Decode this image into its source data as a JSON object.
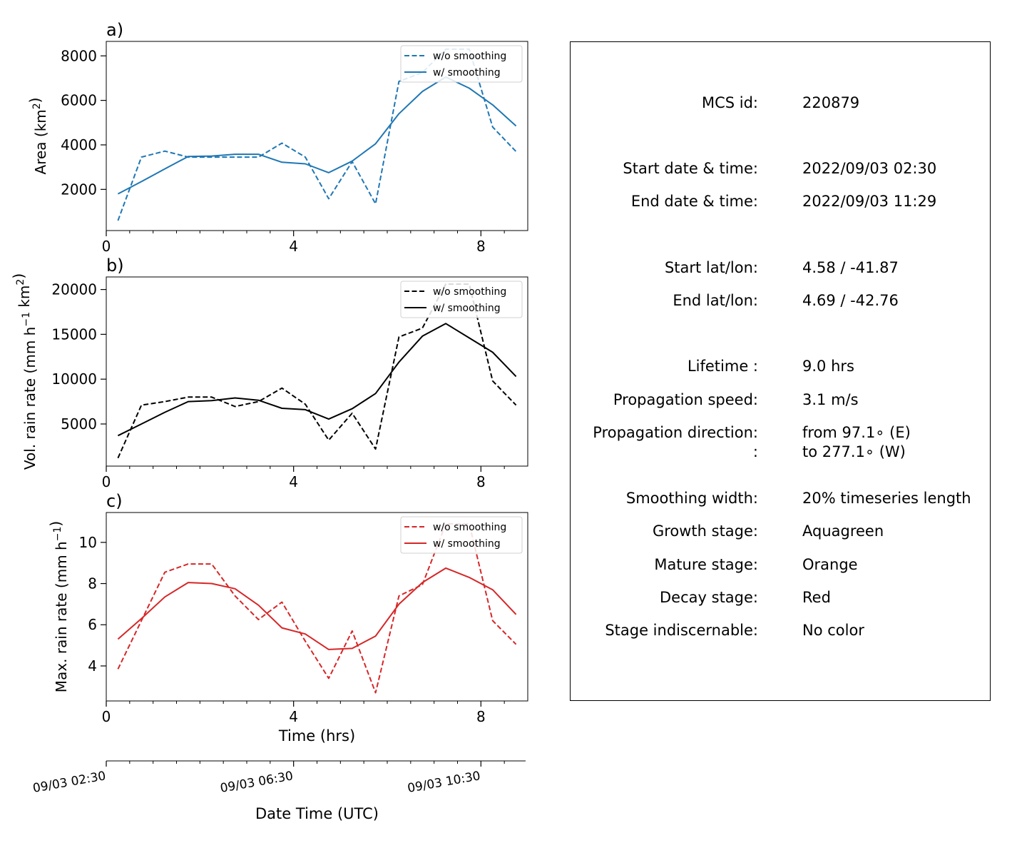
{
  "time_axis": {
    "label": "Time (hrs)",
    "ticks": [
      0,
      4,
      8
    ],
    "minor_ticks": [
      0.5,
      1,
      1.5,
      2,
      2.5,
      3,
      3.5,
      4.5,
      5,
      5.5,
      6,
      6.5,
      7,
      7.5,
      8.5
    ],
    "range": [
      0,
      9
    ]
  },
  "date_axis": {
    "label": "Date Time (UTC)",
    "tick_labels": [
      "09/03 02:30",
      "09/03 06:30",
      "09/03 10:30"
    ],
    "tick_hours": [
      0,
      4,
      8
    ]
  },
  "chart_data": [
    {
      "type": "line",
      "panel": "a)",
      "ylabel": "Area  (km²)",
      "ylabel_main": "Area  (km",
      "ylabel_sup": "2",
      "ylabel_tail": ")",
      "color": "#1f77b4",
      "yticks": [
        2000,
        4000,
        6000,
        8000
      ],
      "ylim": [
        150,
        8650
      ],
      "x": [
        0.25,
        0.75,
        1.25,
        1.75,
        2.25,
        2.75,
        3.25,
        3.75,
        4.25,
        4.75,
        5.25,
        5.75,
        6.25,
        6.75,
        7.25,
        7.75,
        8.25,
        8.75
      ],
      "series": [
        {
          "name": "w/o smoothing",
          "style": "dashed",
          "values": [
            600,
            3450,
            3720,
            3450,
            3450,
            3450,
            3450,
            4080,
            3450,
            1580,
            3250,
            1350,
            6850,
            7250,
            8300,
            8300,
            4800,
            3700
          ]
        },
        {
          "name": "w/ smoothing",
          "style": "solid",
          "values": [
            1800,
            2350,
            2920,
            3480,
            3500,
            3580,
            3580,
            3220,
            3150,
            2750,
            3270,
            4050,
            5400,
            6400,
            7050,
            6550,
            5800,
            4850
          ]
        }
      ]
    },
    {
      "type": "line",
      "panel": "b)",
      "ylabel": "Vol. rain rate (mm h⁻¹ km²)",
      "ylabel_main": "Vol. rain rate (mm h",
      "ylabel_sup": "−1",
      "ylabel_mid": " km",
      "ylabel_sup2": "2",
      "ylabel_tail": ")",
      "color": "#000000",
      "yticks": [
        5000,
        10000,
        15000,
        20000
      ],
      "ylim": [
        300,
        21400
      ],
      "x": [
        0.25,
        0.75,
        1.25,
        1.75,
        2.25,
        2.75,
        3.25,
        3.75,
        4.25,
        4.75,
        5.25,
        5.75,
        6.25,
        6.75,
        7.25,
        7.75,
        8.25,
        8.75
      ],
      "series": [
        {
          "name": "w/o smoothing",
          "style": "dashed",
          "values": [
            1200,
            7100,
            7500,
            8000,
            8000,
            6950,
            7500,
            9000,
            7200,
            3200,
            6200,
            2200,
            14700,
            15700,
            20600,
            20600,
            9800,
            7100
          ]
        },
        {
          "name": "w/ smoothing",
          "style": "solid",
          "values": [
            3700,
            5000,
            6300,
            7500,
            7600,
            7900,
            7650,
            6750,
            6600,
            5550,
            6700,
            8400,
            11900,
            14800,
            16200,
            14600,
            13000,
            10300
          ]
        }
      ]
    },
    {
      "type": "line",
      "panel": "c)",
      "ylabel": "Max. rain rate  (mm h⁻¹)",
      "ylabel_main": "Max. rain rate  (mm h",
      "ylabel_sup": "−1",
      "ylabel_tail": ")",
      "color": "#d62728",
      "yticks": [
        4,
        6,
        8,
        10
      ],
      "ylim": [
        2.3,
        11.45
      ],
      "x": [
        0.25,
        0.75,
        1.25,
        1.75,
        2.25,
        2.75,
        3.25,
        3.75,
        4.25,
        4.75,
        5.25,
        5.75,
        6.25,
        6.75,
        7.25,
        7.75,
        8.25,
        8.75
      ],
      "series": [
        {
          "name": "w/o smoothing",
          "style": "dashed",
          "values": [
            3.85,
            6.2,
            8.55,
            8.95,
            8.95,
            7.4,
            6.25,
            7.1,
            5.2,
            3.4,
            5.7,
            2.7,
            7.4,
            7.95,
            10.9,
            10.9,
            6.2,
            5.05
          ]
        },
        {
          "name": "w/ smoothing",
          "style": "solid",
          "values": [
            5.3,
            6.3,
            7.35,
            8.05,
            8.0,
            7.75,
            6.95,
            5.85,
            5.55,
            4.8,
            4.85,
            5.45,
            7.0,
            8.05,
            8.75,
            8.3,
            7.7,
            6.5
          ]
        }
      ]
    }
  ],
  "info": {
    "mcs_id_label": "MCS id:",
    "mcs_id": "220879",
    "start_time_label": "Start date & time:",
    "start_time": "2022/09/03 02:30",
    "end_time_label": "End date & time:",
    "end_time": "2022/09/03 11:29",
    "start_latlon_label": "Start lat/lon:",
    "start_latlon": "4.58 / -41.87",
    "end_latlon_label": "End lat/lon:",
    "end_latlon": "4.69 / -42.76",
    "lifetime_label": "Lifetime :",
    "lifetime": "9.0 hrs",
    "speed_label": "Propagation speed:",
    "speed": "3.1 m/s",
    "direction_label": "Propagation direction:",
    "direction_from": "from  97.1∘ (E)",
    "direction_label2": ":",
    "direction_to": "to   277.1∘ (W)",
    "smoothing_label": "Smoothing width:",
    "smoothing": "20% timeseries length",
    "growth_label": "Growth stage:",
    "growth": "Aquagreen",
    "mature_label": "Mature stage:",
    "mature": "Orange",
    "decay_label": "Decay stage:",
    "decay": "Red",
    "indisc_label": "Stage indiscernable:",
    "indisc": "No color"
  }
}
